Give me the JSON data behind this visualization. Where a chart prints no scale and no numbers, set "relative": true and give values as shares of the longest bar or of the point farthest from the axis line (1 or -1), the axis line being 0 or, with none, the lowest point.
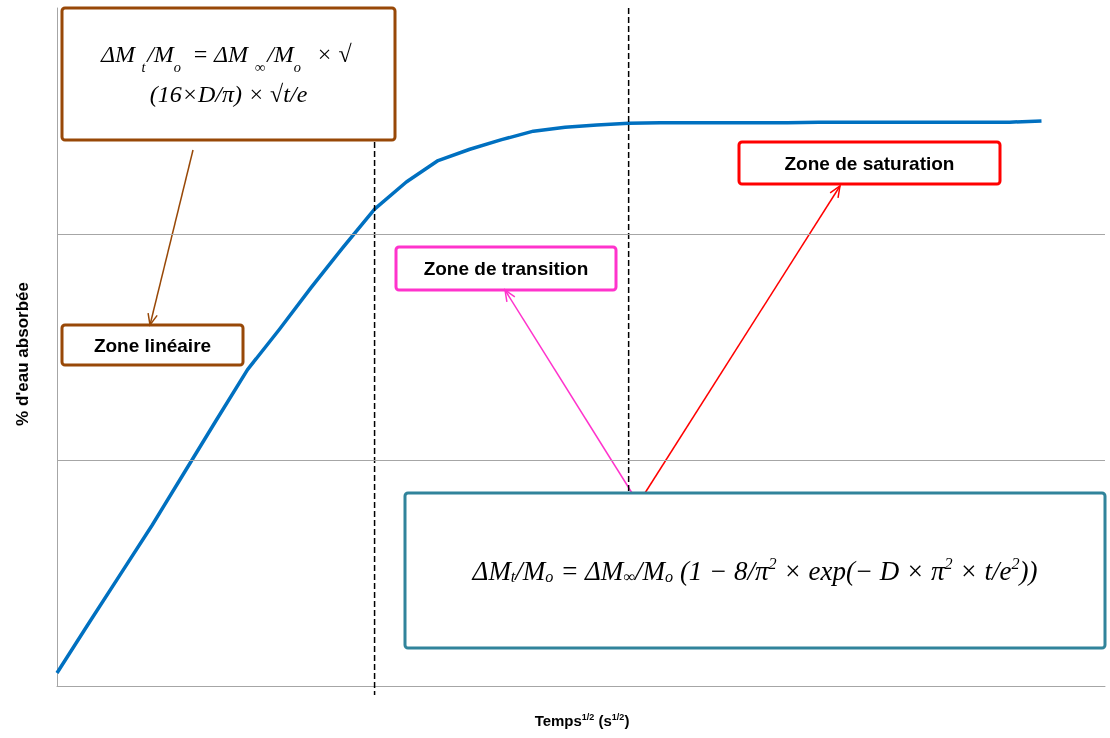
{
  "chart_data": {
    "type": "line",
    "relative": true,
    "xlabel": "Temps$^{1/2}$ (s$^{1/2}$)",
    "ylabel": "% d'eau absorbée",
    "categories": [
      null,
      null,
      null,
      null,
      null,
      null,
      null,
      null,
      null,
      null,
      null,
      null,
      null,
      null,
      null,
      null,
      null,
      null,
      null,
      null,
      null,
      null,
      null,
      null,
      null,
      null,
      null,
      null,
      null,
      null,
      null,
      null,
      null,
      null
    ],
    "series": [
      {
        "color": "#0070c0",
        "values": [
          0.023,
          0.111,
          0.198,
          0.285,
          0.377,
          0.469,
          0.56,
          0.631,
          0.705,
          0.776,
          0.844,
          0.892,
          0.93,
          0.95,
          0.967,
          0.982,
          0.989,
          0.993,
          0.996,
          0.997,
          0.997,
          0.997,
          0.997,
          0.997,
          0.998,
          0.998,
          0.998,
          0.998,
          0.998,
          0.998,
          0.998,
          1,
          null,
          null
        ]
      }
    ],
    "ref_lines": [
      {
        "axis": "y",
        "value": 0.4,
        "color": "#a6a6a6"
      },
      {
        "axis": "y",
        "value": 0.8,
        "color": "#a6a6a6"
      }
    ],
    "annotations": [
      "ΔM$_{t}$/M$_{o}$ = ΔM$_{∞}$/M$_{o}$ × √(16×D/π) × √t/e",
      "Zone linéaire",
      "Zone de transition",
      "Zone de saturation",
      "ΔM$_{t}$/M$_{o}$ = ΔM$_{∞}$/M$_{o}$ (1 − 8/π$^{2}$ × exp(− D × π$^{2}$ × t/e$^{2}$))"
    ]
  }
}
